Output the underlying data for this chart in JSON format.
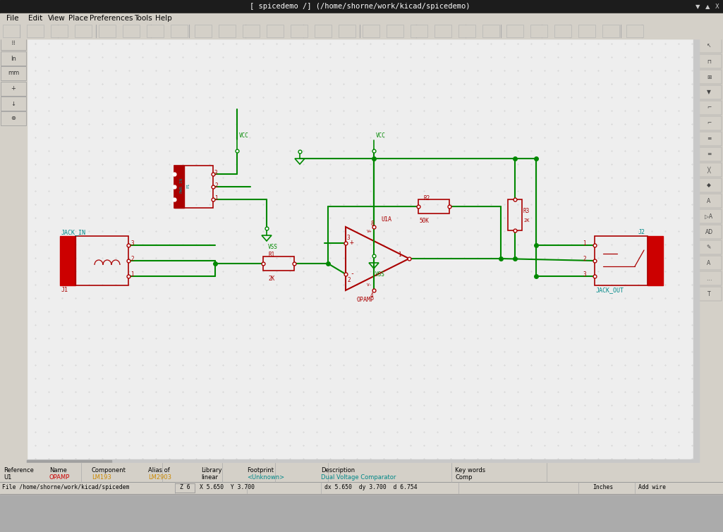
{
  "title_bar": "[ spicedemo /] (/home/shorne/work/kicad/spicedemo)",
  "wire_color": "#008800",
  "component_color": "#aa0000",
  "label_color": "#008888",
  "title_bg": "#1c1c1c",
  "menu_bg": "#d4d0c8",
  "toolbar_bg": "#d4d0c8",
  "sidebar_bg": "#d4d0c8",
  "canvas_bg": "#eeeeee",
  "dot_color": "#cccccc",
  "status_bg": "#d4d0c8",
  "menu_items": [
    "File",
    "Edit",
    "View",
    "Place",
    "Preferences",
    "Tools",
    "Help"
  ],
  "status_row1_headers": [
    "Reference",
    "Name",
    "Component",
    "Alias of",
    "Library",
    "Footprint",
    "Description",
    "Key words"
  ],
  "status_row1_vals": [
    "U1",
    "OPAMP",
    "LM193",
    "LM2903",
    "linear",
    "<Unknown>",
    "Dual Voltage Comparator",
    "Comp"
  ],
  "status_row1_hx": [
    5,
    70,
    130,
    210,
    285,
    350,
    455,
    645
  ],
  "status_row2": "File /home/shorne/work/kicad/spicedem",
  "status_z": "Z 6",
  "status_xy": "X 5.650  Y 3.700",
  "status_d": "dx 5.650  dy 3.700  d 6.754",
  "status_units": "Inches",
  "status_mode": "Add wire"
}
